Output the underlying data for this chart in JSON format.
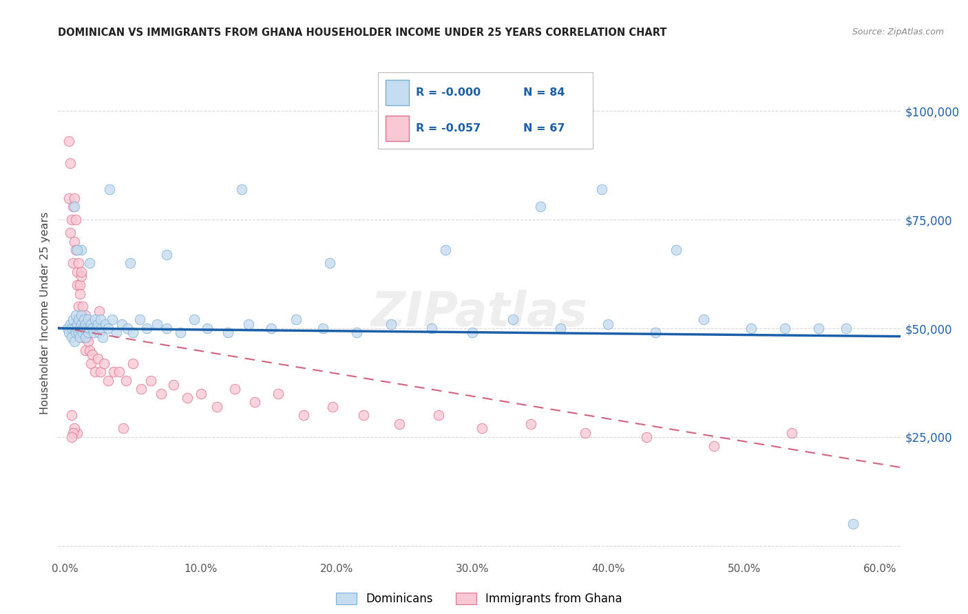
{
  "title": "DOMINICAN VS IMMIGRANTS FROM GHANA HOUSEHOLDER INCOME UNDER 25 YEARS CORRELATION CHART",
  "source": "Source: ZipAtlas.com",
  "ylabel": "Householder Income Under 25 years",
  "xlim": [
    -0.005,
    0.615
  ],
  "ylim": [
    -3000,
    110000
  ],
  "yticks": [
    0,
    25000,
    50000,
    75000,
    100000
  ],
  "ytick_labels": [
    "",
    "$25,000",
    "$50,000",
    "$75,000",
    "$100,000"
  ],
  "xticks": [
    0.0,
    0.1,
    0.2,
    0.3,
    0.4,
    0.5,
    0.6
  ],
  "xtick_labels": [
    "0.0%",
    "10.0%",
    "20.0%",
    "30.0%",
    "40.0%",
    "50.0%",
    "60.0%"
  ],
  "color_blue_fill": "#c6dcf0",
  "color_blue_edge": "#7aafd4",
  "color_pink_fill": "#f9c8d5",
  "color_pink_edge": "#e07090",
  "color_line_blue": "#1a5fa8",
  "color_line_pink": "#d4607a",
  "color_yticklabel": "#2060b0",
  "color_title": "#222222",
  "color_source": "#888888",
  "color_grid": "#d8d8d8",
  "color_bg": "#ffffff",
  "legend_r1": "R = -0.000",
  "legend_n1": "N = 84",
  "legend_r2": "R = -0.057",
  "legend_n2": "N = 67",
  "dominican_x": [
    0.002,
    0.003,
    0.004,
    0.005,
    0.005,
    0.006,
    0.007,
    0.007,
    0.008,
    0.008,
    0.009,
    0.009,
    0.01,
    0.01,
    0.011,
    0.011,
    0.012,
    0.012,
    0.013,
    0.013,
    0.014,
    0.014,
    0.015,
    0.015,
    0.016,
    0.017,
    0.017,
    0.018,
    0.019,
    0.02,
    0.021,
    0.022,
    0.023,
    0.024,
    0.025,
    0.026,
    0.027,
    0.028,
    0.03,
    0.032,
    0.035,
    0.038,
    0.042,
    0.046,
    0.05,
    0.055,
    0.06,
    0.068,
    0.075,
    0.085,
    0.095,
    0.105,
    0.12,
    0.135,
    0.152,
    0.17,
    0.19,
    0.215,
    0.24,
    0.27,
    0.3,
    0.33,
    0.365,
    0.4,
    0.435,
    0.47,
    0.505,
    0.53,
    0.555,
    0.575,
    0.048,
    0.28,
    0.13,
    0.35,
    0.395,
    0.45,
    0.195,
    0.075,
    0.033,
    0.018,
    0.012,
    0.009,
    0.007,
    0.58
  ],
  "dominican_y": [
    50000,
    49000,
    51000,
    50000,
    48000,
    52000,
    50000,
    47000,
    53000,
    49000,
    50000,
    51000,
    49000,
    52000,
    50000,
    48000,
    51000,
    53000,
    50000,
    49000,
    52000,
    50000,
    51000,
    48000,
    50000,
    52000,
    49000,
    50000,
    51000,
    50000,
    49000,
    52000,
    50000,
    51000,
    49000,
    52000,
    50000,
    48000,
    51000,
    50000,
    52000,
    49000,
    51000,
    50000,
    49000,
    52000,
    50000,
    51000,
    50000,
    49000,
    52000,
    50000,
    49000,
    51000,
    50000,
    52000,
    50000,
    49000,
    51000,
    50000,
    49000,
    52000,
    50000,
    51000,
    49000,
    52000,
    50000,
    50000,
    50000,
    50000,
    65000,
    68000,
    82000,
    78000,
    82000,
    68000,
    65000,
    67000,
    82000,
    65000,
    68000,
    68000,
    78000,
    5000
  ],
  "ghana_x": [
    0.003,
    0.003,
    0.004,
    0.004,
    0.005,
    0.005,
    0.006,
    0.006,
    0.007,
    0.007,
    0.008,
    0.008,
    0.009,
    0.009,
    0.01,
    0.01,
    0.011,
    0.011,
    0.012,
    0.012,
    0.013,
    0.013,
    0.014,
    0.015,
    0.015,
    0.016,
    0.017,
    0.018,
    0.019,
    0.02,
    0.022,
    0.024,
    0.026,
    0.029,
    0.032,
    0.036,
    0.04,
    0.045,
    0.05,
    0.056,
    0.063,
    0.071,
    0.08,
    0.09,
    0.1,
    0.112,
    0.125,
    0.14,
    0.157,
    0.176,
    0.197,
    0.22,
    0.246,
    0.275,
    0.307,
    0.343,
    0.383,
    0.428,
    0.478,
    0.535,
    0.025,
    0.043,
    0.012,
    0.009,
    0.007,
    0.006,
    0.005
  ],
  "ghana_y": [
    93000,
    80000,
    88000,
    72000,
    75000,
    30000,
    78000,
    65000,
    80000,
    70000,
    68000,
    75000,
    63000,
    60000,
    65000,
    55000,
    60000,
    58000,
    52000,
    62000,
    48000,
    55000,
    50000,
    53000,
    45000,
    48000,
    47000,
    45000,
    42000,
    44000,
    40000,
    43000,
    40000,
    42000,
    38000,
    40000,
    40000,
    38000,
    42000,
    36000,
    38000,
    35000,
    37000,
    34000,
    35000,
    32000,
    36000,
    33000,
    35000,
    30000,
    32000,
    30000,
    28000,
    30000,
    27000,
    28000,
    26000,
    25000,
    23000,
    26000,
    54000,
    27000,
    63000,
    26000,
    27000,
    26000,
    25000
  ]
}
